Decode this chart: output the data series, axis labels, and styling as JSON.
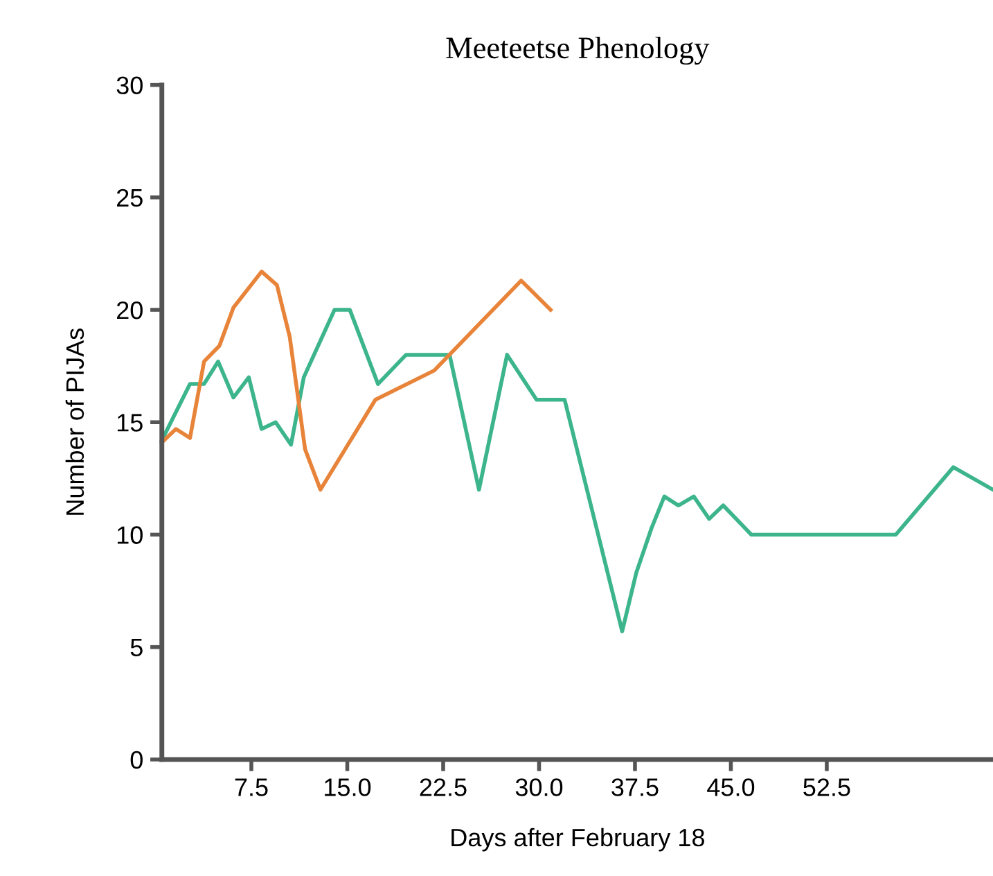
{
  "chart_data": {
    "type": "line",
    "title": "Meeteetse Phenology",
    "xlabel": "Days after February 18",
    "ylabel": "Number of PIJAs",
    "xlim": [
      0.5,
      65.5
    ],
    "ylim": [
      0,
      30
    ],
    "xticks": [
      {
        "value": 7.5,
        "label": "7.5"
      },
      {
        "value": 15,
        "label": "15.0"
      },
      {
        "value": 22.5,
        "label": "22.5"
      },
      {
        "value": 30,
        "label": "30.0"
      },
      {
        "value": 37.5,
        "label": "37.5"
      },
      {
        "value": 45,
        "label": "45.0"
      },
      {
        "value": 52.5,
        "label": "52.5"
      }
    ],
    "yticks": [
      0,
      5,
      10,
      15,
      20,
      25,
      30
    ],
    "grid": false,
    "marker": "none",
    "line_style": "solid",
    "series": [
      {
        "color": "#3db58c",
        "x": [
          0.5,
          2.7,
          3.8,
          4.9,
          6.1,
          7.3,
          8.3,
          9.4,
          10.6,
          11.6,
          14.0,
          15.2,
          17.4,
          19.6,
          23.0,
          25.3,
          27.5,
          29.8,
          32.0,
          36.5,
          37.6,
          38.8,
          39.8,
          40.9,
          42.1,
          43.3,
          44.4,
          46.6,
          57.9,
          62.4,
          65.5
        ],
        "values": [
          14.2,
          16.7,
          16.7,
          17.7,
          16.1,
          17.0,
          14.7,
          15.0,
          14.0,
          17.0,
          20.0,
          20.0,
          16.7,
          18.0,
          18.0,
          12.0,
          18.0,
          16.0,
          16.0,
          5.7,
          8.3,
          10.3,
          11.7,
          11.3,
          11.7,
          10.7,
          11.3,
          10.0,
          10.0,
          13.0,
          12.0
        ]
      },
      {
        "color": "#e8843a",
        "x": [
          0.5,
          1.6,
          2.7,
          3.8,
          5.0,
          6.1,
          8.3,
          9.5,
          10.5,
          11.7,
          12.9,
          17.2,
          21.8,
          28.6,
          30.9
        ],
        "values": [
          14.1,
          14.7,
          14.3,
          17.7,
          18.4,
          20.1,
          21.7,
          21.1,
          18.8,
          13.8,
          12.0,
          16.0,
          17.3,
          21.3,
          20.0
        ]
      }
    ]
  }
}
